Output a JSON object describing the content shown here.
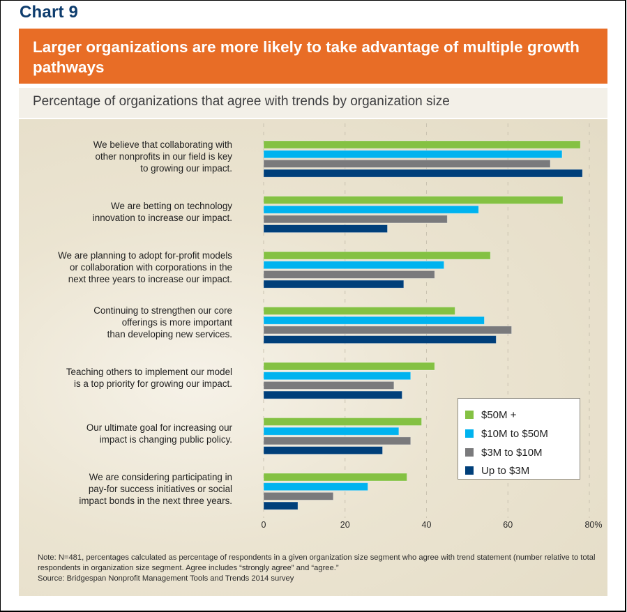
{
  "chart_number": "Chart 9",
  "title": "Larger organizations are more likely to take advantage of multiple growth pathways",
  "subtitle": "Percentage of organizations that agree with trends by organization size",
  "colors": {
    "title_band": "#e86d26",
    "chart_number": "#0e3d6e"
  },
  "chart_data": {
    "type": "bar",
    "orientation": "horizontal",
    "title": "Percentage of organizations that agree with trends by organization size",
    "xlabel": "",
    "ylabel": "",
    "xlim": [
      0,
      80
    ],
    "x_ticks": [
      "0",
      "20",
      "40",
      "60",
      "80%"
    ],
    "x_tick_values": [
      0,
      20,
      40,
      60,
      80
    ],
    "grid": "vertical dashed",
    "legend_position": "bottom-right",
    "categories": [
      "We believe that collaborating with\nother nonprofits in our field is key\nto growing our impact.",
      "We are betting on technology\ninnovation to increase our impact.",
      "We are planning to adopt for-profit models\nor collaboration with corporations in the\nnext three years to increase our impact.",
      "Continuing to strengthen our core\nofferings is more important\nthan developing new services.",
      "Teaching others to implement our model\nis a top priority for growing our impact.",
      "Our ultimate goal for increasing our\nimpact is changing public policy.",
      "We are considering participating in\npay-for success initiatives or social\nimpact bonds in the next three years."
    ],
    "series": [
      {
        "name": "$50M +",
        "color": "#84c143",
        "values": [
          77.8,
          73.5,
          55.7,
          47.0,
          42.0,
          38.8,
          35.2
        ]
      },
      {
        "name": "$10M to $50M",
        "color": "#00b3ef",
        "values": [
          73.3,
          52.8,
          44.3,
          54.2,
          36.1,
          33.2,
          25.6
        ]
      },
      {
        "name": "$3M to $10M",
        "color": "#7a7a7c",
        "values": [
          70.4,
          45.1,
          42.0,
          60.9,
          32.0,
          36.1,
          17.1
        ]
      },
      {
        "name": "Up to $3M",
        "color": "#003f7a",
        "values": [
          78.3,
          30.4,
          34.4,
          57.1,
          34.0,
          29.2,
          8.4
        ]
      }
    ]
  },
  "note": "Note: N=481, percentages calculated as percentage of respondents in a given organization size segment who agree with trend statement (number relative to total respondents in organization size segment. Agree includes “strongly agree” and “agree.”",
  "source": "Source: Bridgespan Nonprofit Management Tools and Trends 2014 survey"
}
